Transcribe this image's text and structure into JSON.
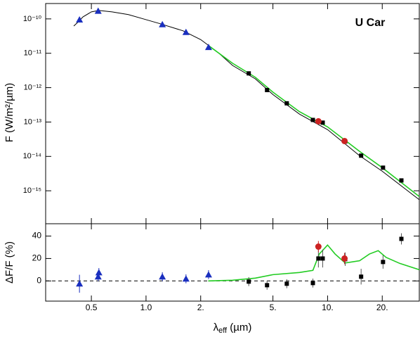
{
  "chart_data": [
    {
      "type": "line",
      "annotation": "U Car",
      "ylabel": "F (W/m²/µm)",
      "xscale": "log",
      "yscale": "log",
      "xlim": [
        0.28,
        32
      ],
      "xticks": [
        0.5,
        1,
        2,
        5,
        10,
        20
      ],
      "ylim": [
        1.1e-16,
        2.8e-10
      ],
      "yticks": [
        {
          "value": 1e-10,
          "label": "10⁻¹⁰"
        },
        {
          "value": 1e-11,
          "label": "10⁻¹¹"
        },
        {
          "value": 1e-12,
          "label": "10⁻¹²"
        },
        {
          "value": 1e-13,
          "label": "10⁻¹³"
        },
        {
          "value": 1e-14,
          "label": "10⁻¹⁴"
        },
        {
          "value": 1e-15,
          "label": "10⁻¹⁵"
        }
      ],
      "series": [
        {
          "type": "line",
          "color": "#000000",
          "width": 1,
          "x": [
            0.4,
            0.42,
            0.45,
            0.5,
            0.55,
            0.65,
            0.8,
            1.0,
            1.2,
            1.6,
            2.0,
            2.5,
            3,
            4,
            5,
            7,
            10,
            15,
            20,
            32
          ],
          "values": [
            6.2e-11,
            7.9e-11,
            1.15e-10,
            1.6e-10,
            1.76e-10,
            1.6e-10,
            1.33e-10,
            9.5e-11,
            7.2e-11,
            4.5e-11,
            2.5e-11,
            1.04e-11,
            4.4e-12,
            1.8e-12,
            6.3e-13,
            1.7e-13,
            6e-14,
            1.05e-14,
            3.7e-15,
            5.5e-16
          ]
        },
        {
          "type": "line",
          "color": "#22cc22",
          "width": 1.6,
          "x": [
            2.2,
            3,
            4,
            5,
            7,
            10,
            15,
            20,
            32
          ],
          "values": [
            1.7e-11,
            5.1e-12,
            2e-12,
            7.4e-13,
            2e-13,
            7.2e-14,
            1.4e-14,
            4.7e-15,
            6.8e-16
          ]
        },
        {
          "type": "scatter",
          "marker": "triangle",
          "color": "#1a2fbf",
          "x": [
            0.43,
            0.545,
            1.23,
            1.66,
            2.21
          ],
          "values": [
            9.5e-11,
            1.7e-10,
            6.9e-11,
            4.1e-11,
            1.5e-11
          ]
        },
        {
          "type": "scatter",
          "marker": "square",
          "color": "#000000",
          "x": [
            3.68,
            4.64,
            5.96,
            8.3,
            8.9,
            9.4,
            12.5,
            15.3,
            20.2,
            25.5
          ],
          "values": [
            2.6e-12,
            8.5e-13,
            3.5e-13,
            1.15e-13,
            1.05e-13,
            9.6e-14,
            2.7e-14,
            1.05e-14,
            4.7e-15,
            2e-15
          ]
        },
        {
          "type": "scatter",
          "marker": "circle",
          "color": "#cc2222",
          "x": [
            8.9,
            12.4
          ],
          "values": [
            1.05e-13,
            2.8e-14
          ]
        }
      ]
    },
    {
      "type": "line",
      "ylabel": "ΔF/F (%)",
      "xlabel": {
        "symbol": "λ",
        "subscript": "eff",
        "unit": " (µm)"
      },
      "xscale": "log",
      "xlim": [
        0.28,
        32
      ],
      "xticks": [
        {
          "value": 0.5,
          "label": "0.5"
        },
        {
          "value": 1,
          "label": "1.0"
        },
        {
          "value": 2,
          "label": "2."
        },
        {
          "value": 5,
          "label": "5."
        },
        {
          "value": 10,
          "label": "10."
        },
        {
          "value": 20,
          "label": "20."
        }
      ],
      "ylim": [
        -18,
        51
      ],
      "yticks": [
        0,
        20,
        40
      ],
      "hline": 0,
      "series": [
        {
          "type": "line",
          "color": "#22cc22",
          "width": 1.6,
          "x": [
            2.2,
            3,
            4,
            5,
            7,
            8.3,
            9,
            10,
            11,
            12.5,
            15,
            17,
            19,
            21,
            25,
            32
          ],
          "values": [
            0,
            0.6,
            2.5,
            5.6,
            7.5,
            9.4,
            24,
            32,
            24,
            16,
            18,
            24,
            27,
            21,
            15.6,
            10
          ]
        },
        {
          "type": "scatter",
          "marker": "triangle",
          "color": "#1a2fbf",
          "x": [
            0.43,
            0.545,
            0.55,
            1.23,
            1.66,
            2.21
          ],
          "values": [
            -2.5,
            3.8,
            7.5,
            3.8,
            1.9,
            5.6
          ],
          "errors": [
            8,
            4,
            4,
            4,
            4,
            4
          ]
        },
        {
          "type": "scatter",
          "marker": "square",
          "color": "#000000",
          "x": [
            3.68,
            4.64,
            5.96,
            8.3,
            8.9,
            9.4,
            12.5,
            15.3,
            20.2,
            25.5
          ],
          "values": [
            -0.6,
            -3.8,
            -2.5,
            -1.9,
            20,
            20,
            19.4,
            3.8,
            16.9,
            37.5
          ],
          "errors": [
            4,
            4,
            4,
            4,
            8,
            8,
            6,
            7,
            6,
            5
          ]
        },
        {
          "type": "scatter",
          "marker": "circle",
          "color": "#cc2222",
          "x": [
            8.9,
            12.4
          ],
          "values": [
            30.6,
            20
          ],
          "errors": [
            5,
            5
          ]
        }
      ]
    }
  ]
}
